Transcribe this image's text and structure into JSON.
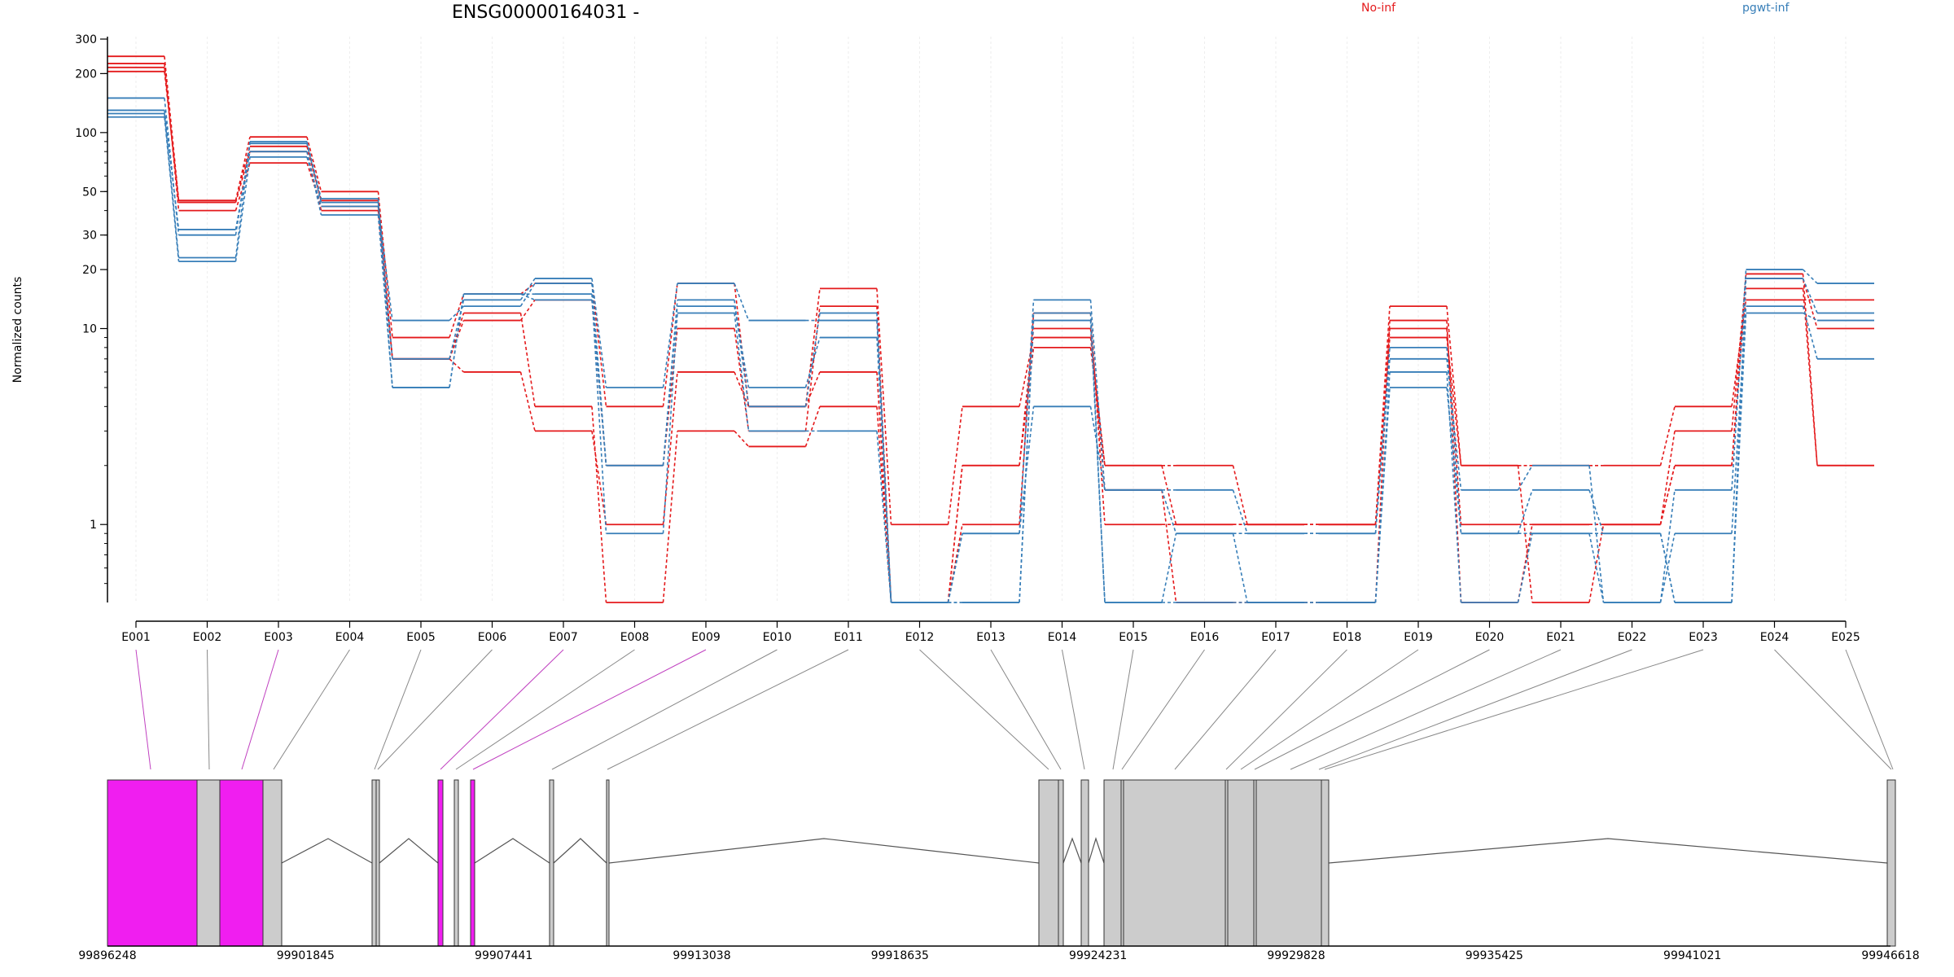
{
  "chart_data": {
    "type": "line",
    "title": "ENSG00000164031 -",
    "ylabel": "Normalized counts",
    "yscale": "log",
    "y_ticks": [
      {
        "value": 1,
        "label": "1"
      },
      {
        "value": 10,
        "label": "10"
      },
      {
        "value": 20,
        "label": "20"
      },
      {
        "value": 30,
        "label": "30"
      },
      {
        "value": 50,
        "label": "50"
      },
      {
        "value": 100,
        "label": "100"
      },
      {
        "value": 200,
        "label": "200"
      },
      {
        "value": 300,
        "label": "300"
      }
    ],
    "ylim": [
      0.4,
      300
    ],
    "categories": [
      "E001",
      "E002",
      "E003",
      "E004",
      "E005",
      "E006",
      "E007",
      "E008",
      "E009",
      "E010",
      "E011",
      "E012",
      "E013",
      "E014",
      "E015",
      "E016",
      "E017",
      "E018",
      "E019",
      "E020",
      "E021",
      "E022",
      "E023",
      "E024",
      "E025"
    ],
    "legend": [
      {
        "name": "No-inf",
        "color": "#e41a1c"
      },
      {
        "name": "pgwt-inf",
        "color": "#377eb8"
      }
    ],
    "series": [
      {
        "group": "No-inf",
        "color": "#e41a1c",
        "values": [
          245,
          45,
          95,
          50,
          9,
          15,
          17,
          4,
          17,
          4,
          16,
          1,
          4,
          9,
          2,
          1,
          1,
          1,
          13,
          2,
          2,
          2,
          4,
          14,
          14
        ]
      },
      {
        "group": "No-inf",
        "color": "#e41a1c",
        "values": [
          225,
          40,
          70,
          42,
          7,
          11,
          14,
          2,
          10,
          3,
          13,
          0.4,
          2,
          8,
          2,
          2,
          1,
          1,
          10,
          1,
          1,
          1,
          3,
          18,
          10
        ]
      },
      {
        "group": "No-inf",
        "color": "#e41a1c",
        "values": [
          205,
          45,
          85,
          45,
          7,
          6,
          3,
          1,
          6,
          4,
          6,
          0.4,
          1,
          12,
          1,
          1,
          1,
          1,
          9,
          2,
          0.4,
          1,
          2,
          16,
          2
        ]
      },
      {
        "group": "No-inf",
        "color": "#e41a1c",
        "values": [
          215,
          44,
          80,
          40,
          7,
          12,
          4,
          0.4,
          3,
          2.5,
          4,
          0.4,
          2,
          10,
          1.5,
          0.4,
          0.4,
          0.4,
          11,
          0.4,
          1,
          1,
          2,
          19,
          2
        ]
      },
      {
        "group": "pgwt-inf",
        "color": "#377eb8",
        "values": [
          150,
          30,
          88,
          44,
          7,
          14,
          18,
          5,
          17,
          11,
          11,
          0.4,
          0.9,
          14,
          1.5,
          1.5,
          0.9,
          0.9,
          7,
          1.5,
          2,
          0.4,
          1.5,
          20,
          17
        ]
      },
      {
        "group": "pgwt-inf",
        "color": "#377eb8",
        "values": [
          130,
          32,
          80,
          38,
          5,
          15,
          14,
          2,
          13,
          5,
          9,
          0.4,
          0.9,
          4,
          1.5,
          0.9,
          0.4,
          0.4,
          5,
          0.9,
          1.5,
          0.9,
          0.4,
          12,
          11
        ]
      },
      {
        "group": "pgwt-inf",
        "color": "#377eb8",
        "values": [
          120,
          22,
          75,
          42,
          11,
          13,
          17,
          2,
          14,
          4,
          12,
          0.4,
          0.4,
          12,
          0.4,
          0.4,
          0.4,
          0.4,
          6,
          0.4,
          0.9,
          0.4,
          0.9,
          13,
          7
        ]
      },
      {
        "group": "pgwt-inf",
        "color": "#377eb8",
        "values": [
          125,
          23,
          90,
          46,
          5,
          15,
          15,
          0.9,
          12,
          3,
          3,
          0.4,
          0.4,
          11,
          0.4,
          0.9,
          0.9,
          0.9,
          8,
          0.9,
          0.9,
          0.9,
          0.4,
          18,
          12
        ]
      }
    ],
    "genomic_axis": {
      "start": 99896248,
      "end": 99946618,
      "tick_labels": [
        "99896248",
        "99901845",
        "99907441",
        "99913038",
        "99918635",
        "99924231",
        "99929828",
        "99935425",
        "99941021",
        "99946618"
      ]
    },
    "exon_colors": {
      "default": "#cccccc",
      "highlight": "#f01ef0"
    }
  }
}
